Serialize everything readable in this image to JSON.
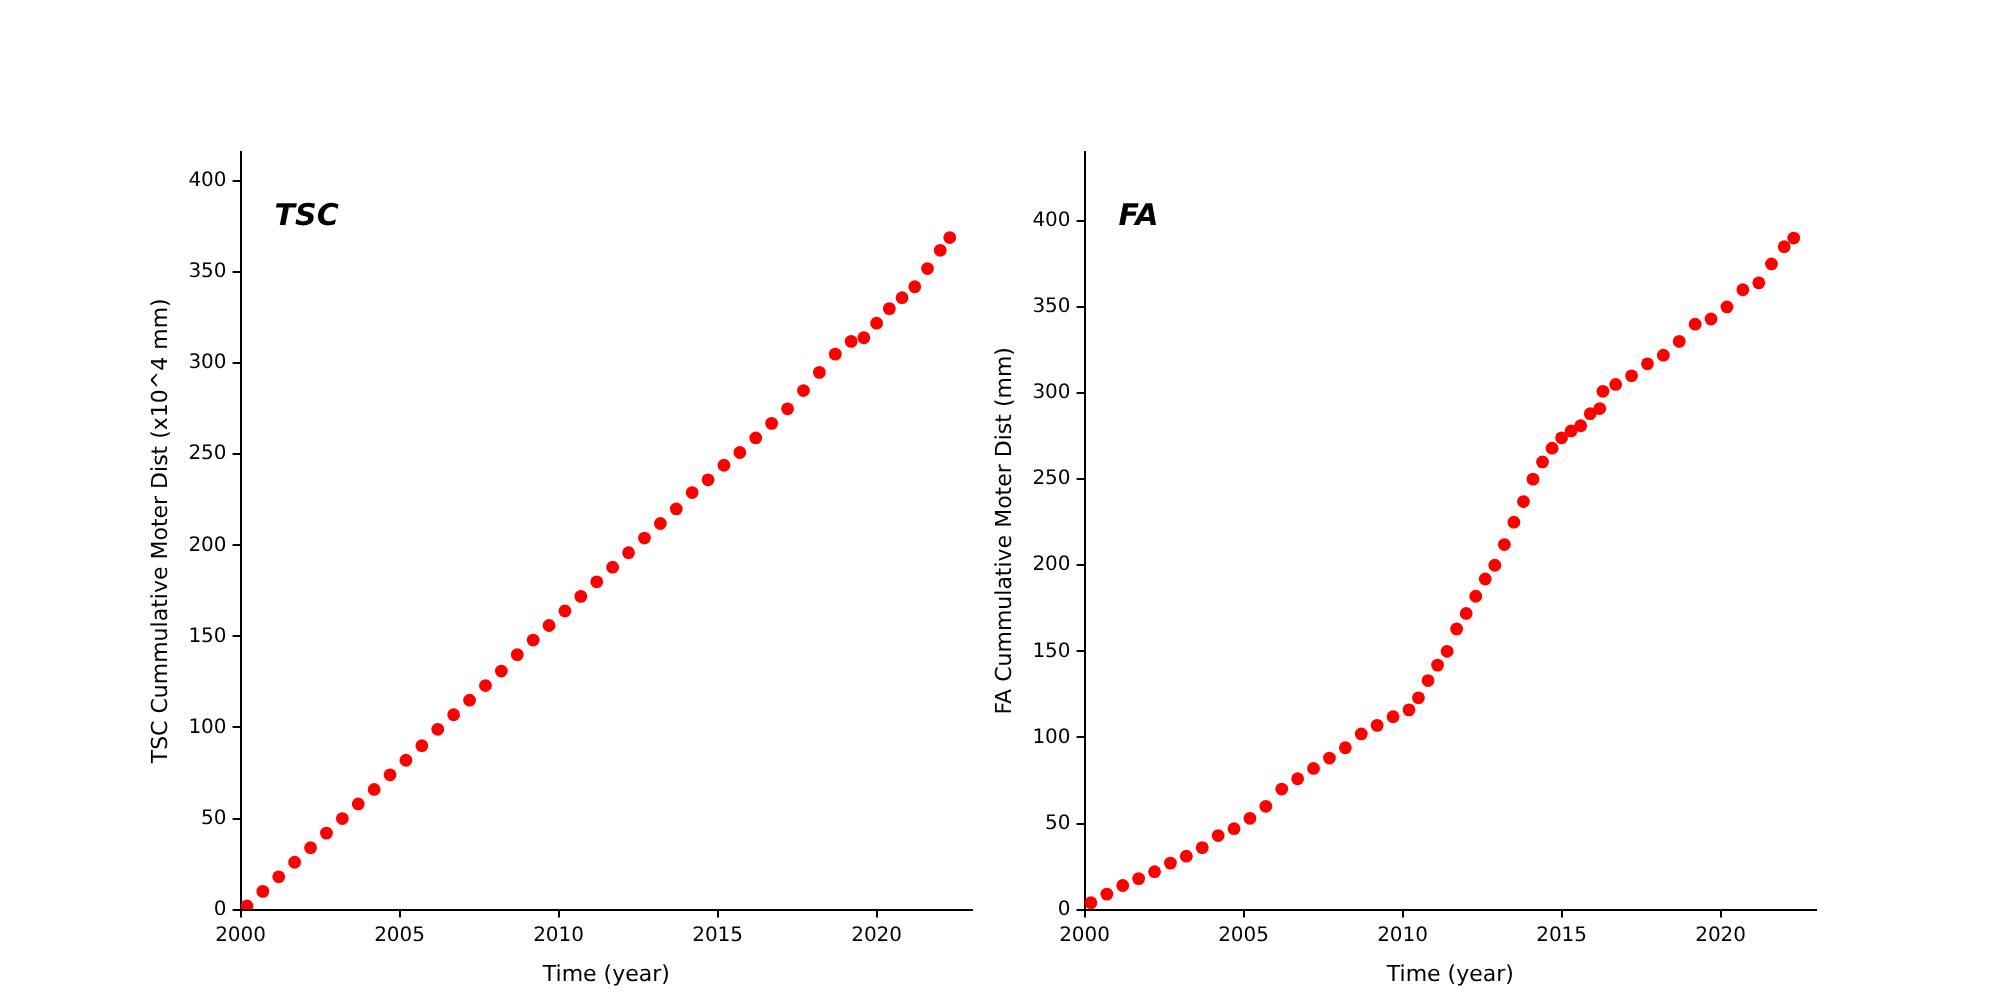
{
  "chart_data": [
    {
      "type": "scatter",
      "annotations": [
        "TSC"
      ],
      "xlabel": "Time (year)",
      "ylabel": "TSC Cummulative Moter Dist (x10^4 mm)",
      "xlim": [
        2000,
        2023
      ],
      "ylim": [
        0,
        416
      ],
      "xticks": [
        2000,
        2005,
        2010,
        2015,
        2020
      ],
      "yticks": [
        0,
        50,
        100,
        150,
        200,
        250,
        300,
        350,
        400
      ],
      "grid": false,
      "legend": false,
      "marker": "circle",
      "series": [
        {
          "color": "#ff0000",
          "x": [
            2000.2,
            2000.7,
            2001.2,
            2001.7,
            2002.2,
            2002.7,
            2003.2,
            2003.7,
            2004.2,
            2004.7,
            2005.2,
            2005.7,
            2006.2,
            2006.7,
            2007.2,
            2007.7,
            2008.2,
            2008.7,
            2009.2,
            2009.7,
            2010.2,
            2010.7,
            2011.2,
            2011.7,
            2012.2,
            2012.7,
            2013.2,
            2013.7,
            2014.2,
            2014.7,
            2015.2,
            2015.7,
            2016.2,
            2016.7,
            2017.2,
            2017.7,
            2018.2,
            2018.7,
            2019.2,
            2019.6,
            2020.0,
            2020.4,
            2020.8,
            2021.2,
            2021.6,
            2022.0,
            2022.3
          ],
          "values": [
            2,
            10,
            18,
            26,
            34,
            42,
            50,
            58,
            66,
            74,
            82,
            90,
            99,
            107,
            115,
            123,
            131,
            140,
            148,
            156,
            164,
            172,
            180,
            188,
            196,
            204,
            212,
            220,
            229,
            236,
            244,
            251,
            259,
            267,
            275,
            285,
            295,
            305,
            312,
            314,
            322,
            330,
            336,
            342,
            352,
            362,
            369
          ]
        }
      ]
    },
    {
      "type": "scatter",
      "annotations": [
        "FA"
      ],
      "xlabel": "Time (year)",
      "ylabel": "FA Cummulative Moter Dist (mm)",
      "xlim": [
        2000,
        2023
      ],
      "ylim": [
        0,
        440
      ],
      "xticks": [
        2000,
        2005,
        2010,
        2015,
        2020
      ],
      "yticks": [
        0,
        50,
        100,
        150,
        200,
        250,
        300,
        350,
        400
      ],
      "grid": false,
      "legend": false,
      "marker": "circle",
      "series": [
        {
          "color": "#ff0000",
          "x": [
            2000.2,
            2000.7,
            2001.2,
            2001.7,
            2002.2,
            2002.7,
            2003.2,
            2003.7,
            2004.2,
            2004.7,
            2005.2,
            2005.7,
            2006.2,
            2006.7,
            2007.2,
            2007.7,
            2008.2,
            2008.7,
            2009.2,
            2009.7,
            2010.2,
            2010.5,
            2010.8,
            2011.1,
            2011.4,
            2011.7,
            2012.0,
            2012.3,
            2012.6,
            2012.9,
            2013.2,
            2013.5,
            2013.8,
            2014.1,
            2014.4,
            2014.7,
            2015.0,
            2015.3,
            2015.6,
            2015.9,
            2016.2,
            2016.3,
            2016.7,
            2017.2,
            2017.7,
            2018.2,
            2018.7,
            2019.2,
            2019.7,
            2020.2,
            2020.7,
            2021.2,
            2021.6,
            2022.0,
            2022.3
          ],
          "values": [
            4,
            9,
            14,
            18,
            22,
            27,
            31,
            36,
            43,
            47,
            53,
            60,
            70,
            76,
            82,
            88,
            94,
            102,
            107,
            112,
            116,
            123,
            133,
            142,
            150,
            163,
            172,
            182,
            192,
            200,
            212,
            225,
            237,
            250,
            260,
            268,
            274,
            278,
            281,
            288,
            291,
            301,
            305,
            310,
            317,
            322,
            330,
            340,
            343,
            350,
            360,
            364,
            375,
            385,
            390
          ]
        }
      ]
    }
  ]
}
